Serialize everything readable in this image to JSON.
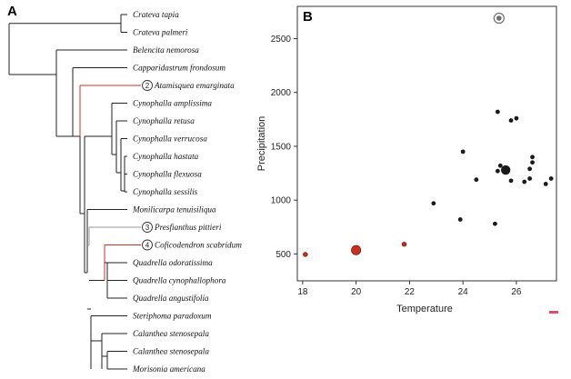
{
  "panel_a": {
    "letter": "A",
    "taxa": [
      {
        "name": "Crateva tapia",
        "color": "#111111"
      },
      {
        "name": "Crateva palmeri",
        "color": "#111111"
      },
      {
        "name": "Belencita nemorosa",
        "color": "#111111"
      },
      {
        "name": "Capparidastrum frondosum",
        "color": "#111111"
      },
      {
        "name": "Atamisquea emarginata",
        "color": "#d0301c",
        "marker": "2"
      },
      {
        "name": "Cynophalla amplissima",
        "color": "#111111"
      },
      {
        "name": "Cynophalla retusa",
        "color": "#111111"
      },
      {
        "name": "Cynophalla verrucosa",
        "color": "#111111"
      },
      {
        "name": "Cynophalla hastata",
        "color": "#111111"
      },
      {
        "name": "Cynophalla flexuosa",
        "color": "#111111"
      },
      {
        "name": "Cynophalla sessilis",
        "color": "#111111"
      },
      {
        "name": "Monilicarpa tenuisiliqua",
        "color": "#111111"
      },
      {
        "name": "Presfianthus pittieri",
        "color": "#111111",
        "marker": "3"
      },
      {
        "name": "Coficodendron scabridum",
        "color": "#d0301c",
        "marker": "4"
      },
      {
        "name": "Quadrella odoratissima",
        "color": "#111111"
      },
      {
        "name": "Quadrella cynophallophora",
        "color": "#111111"
      },
      {
        "name": "Quadrella angustifolia",
        "color": "#111111"
      },
      {
        "name": "Steriphoma paradoxum",
        "color": "#111111"
      },
      {
        "name": "Calanthea stenosepala",
        "color": "#111111"
      },
      {
        "name": "Calanthea stenosepala",
        "color": "#111111"
      },
      {
        "name": "Morisonia americana",
        "color": "#111111"
      }
    ],
    "colors": {
      "black": "#222222",
      "red": "#d0301c",
      "grey": "#9a9a9a"
    }
  },
  "panel_b": {
    "letter": "B"
  },
  "chart_data": {
    "type": "scatter",
    "xlabel": "Temperature",
    "ylabel": "Precipitation",
    "xlim": [
      17.8,
      27.5
    ],
    "ylim": [
      250,
      2800
    ],
    "x_ticks": [
      18,
      20,
      22,
      24,
      26
    ],
    "y_ticks": [
      500,
      1000,
      1500,
      2000,
      2500
    ],
    "grid": false,
    "series": [
      {
        "color": "#1a1a1a",
        "points": [
          {
            "x": 25.3,
            "y": 1820,
            "size": "small"
          },
          {
            "x": 25.8,
            "y": 1740,
            "size": "small"
          },
          {
            "x": 26.0,
            "y": 1760,
            "size": "small"
          },
          {
            "x": 24.0,
            "y": 1450,
            "size": "small"
          },
          {
            "x": 26.6,
            "y": 1400,
            "size": "small"
          },
          {
            "x": 26.6,
            "y": 1350,
            "size": "small"
          },
          {
            "x": 25.4,
            "y": 1320,
            "size": "small"
          },
          {
            "x": 25.6,
            "y": 1300,
            "size": "small"
          },
          {
            "x": 26.5,
            "y": 1290,
            "size": "small"
          },
          {
            "x": 25.3,
            "y": 1270,
            "size": "small"
          },
          {
            "x": 25.6,
            "y": 1280,
            "size": "large"
          },
          {
            "x": 27.3,
            "y": 1200,
            "size": "small"
          },
          {
            "x": 26.5,
            "y": 1200,
            "size": "small"
          },
          {
            "x": 24.5,
            "y": 1190,
            "size": "small"
          },
          {
            "x": 25.8,
            "y": 1180,
            "size": "small"
          },
          {
            "x": 26.3,
            "y": 1170,
            "size": "small"
          },
          {
            "x": 27.1,
            "y": 1150,
            "size": "small"
          },
          {
            "x": 22.9,
            "y": 970,
            "size": "small"
          },
          {
            "x": 23.9,
            "y": 820,
            "size": "small"
          },
          {
            "x": 25.2,
            "y": 780,
            "size": "small"
          }
        ]
      },
      {
        "color": "#c8301e",
        "points": [
          {
            "x": 18.1,
            "y": 495,
            "size": "small"
          },
          {
            "x": 20.0,
            "y": 535,
            "size": "large"
          },
          {
            "x": 21.8,
            "y": 590,
            "size": "small"
          }
        ]
      },
      {
        "color": "#6e6e6e",
        "points": [
          {
            "x": 25.35,
            "y": 2690,
            "size": "ring"
          }
        ]
      }
    ]
  },
  "corner_mark_color": "#e0506a"
}
